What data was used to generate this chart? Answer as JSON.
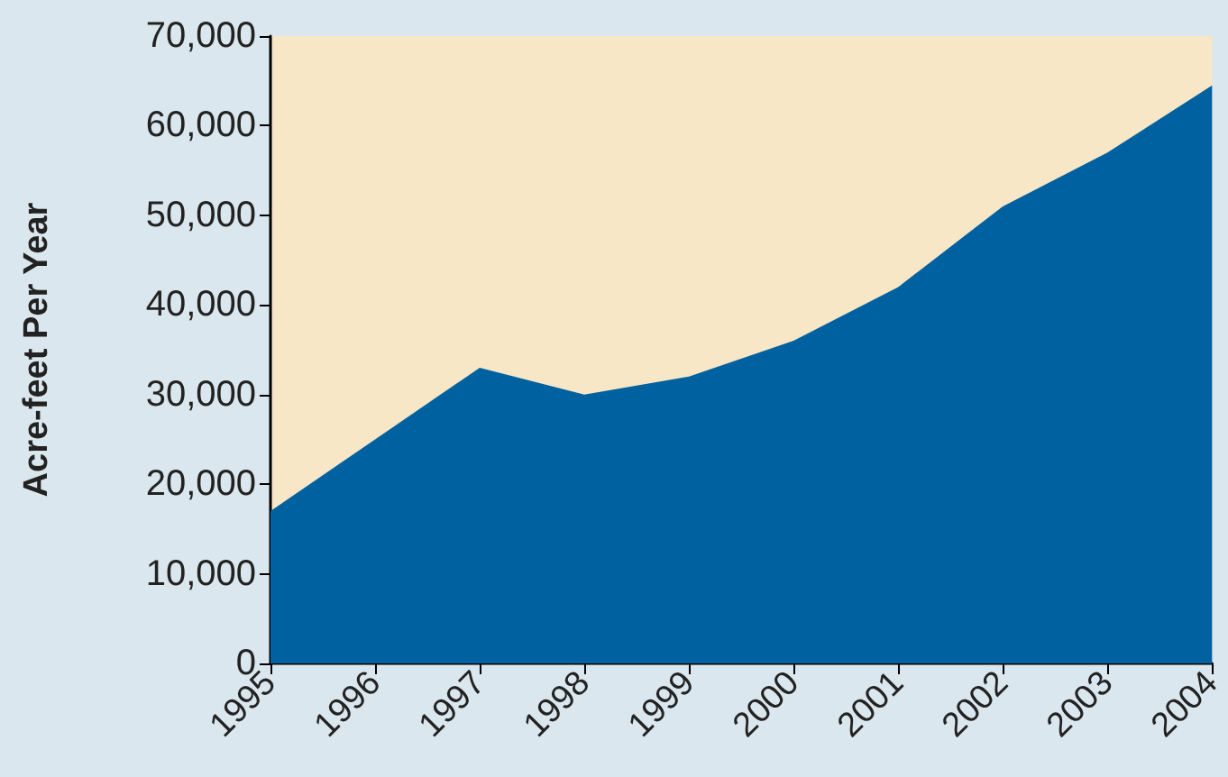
{
  "chart_data": {
    "type": "area",
    "ylabel": "Acre-feet Per Year",
    "categories": [
      "1995",
      "1996",
      "1997",
      "1998",
      "1999",
      "2000",
      "2001",
      "2002",
      "2003",
      "2004"
    ],
    "series": [
      {
        "color": "#0061a1",
        "values": [
          17000,
          25000,
          33000,
          30000,
          32000,
          36000,
          42000,
          51000,
          57000,
          64500
        ]
      }
    ],
    "ylim": [
      0,
      70000
    ],
    "yticks": [
      0,
      {
        "value": 10000,
        "label": "10,000"
      },
      {
        "value": 20000,
        "label": "20,000"
      },
      {
        "value": 30000,
        "label": "30,000"
      },
      {
        "value": 40000,
        "label": "40,000"
      },
      {
        "value": 50000,
        "label": "50,000"
      },
      {
        "value": 60000,
        "label": "60,000"
      },
      {
        "value": 70000,
        "label": "70,000"
      }
    ],
    "bands": [
      {
        "axis": "y",
        "from": 0,
        "to": 70000,
        "color": "#f7e7c6"
      }
    ],
    "grid": false
  }
}
